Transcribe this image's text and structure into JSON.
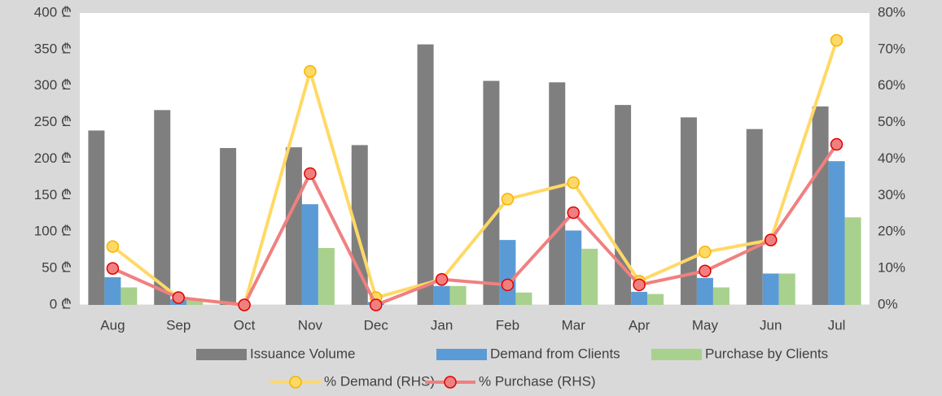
{
  "chart_data": {
    "type": "bar_line",
    "categories": [
      "Aug",
      "Sep",
      "Oct",
      "Nov",
      "Dec",
      "Jan",
      "Feb",
      "Mar",
      "Apr",
      "May",
      "Jun",
      "Jul"
    ],
    "series": [
      {
        "name": "Issuance Volume",
        "type": "bar",
        "color": "#7f7f7f",
        "values": [
          239,
          267,
          215,
          216,
          219,
          357,
          307,
          305,
          274,
          257,
          241,
          272
        ]
      },
      {
        "name": "Demand from Clients",
        "type": "bar",
        "color": "#5b9bd5",
        "values": [
          38,
          8,
          0,
          138,
          4,
          26,
          89,
          102,
          18,
          37,
          43,
          197
        ]
      },
      {
        "name": "Purchase by Clients",
        "type": "bar",
        "color": "#a9d18e",
        "values": [
          24,
          8,
          0,
          78,
          0,
          26,
          17,
          77,
          15,
          24,
          43,
          120
        ]
      },
      {
        "name": "% Demand (RHS)",
        "type": "line",
        "axis": "y2",
        "color": "#ffd966",
        "values": [
          16,
          2,
          0,
          64,
          2,
          7,
          29,
          33.5,
          6.5,
          14.5,
          17.8,
          72.5
        ]
      },
      {
        "name": "% Purchase (RHS)",
        "type": "line",
        "axis": "y2",
        "color": "#f08080",
        "values": [
          10,
          2,
          0,
          36,
          0,
          7,
          5.5,
          25.3,
          5.5,
          9.3,
          17.8,
          44
        ]
      }
    ],
    "ylim": [
      0,
      400
    ],
    "yticks": [
      {
        "value": 0,
        "label": "0 ₾"
      },
      {
        "value": 50,
        "label": "50 ₾"
      },
      {
        "value": 100,
        "label": "100 ₾"
      },
      {
        "value": 150,
        "label": "150 ₾"
      },
      {
        "value": 200,
        "label": "200 ₾"
      },
      {
        "value": 250,
        "label": "250 ₾"
      },
      {
        "value": 300,
        "label": "300 ₾"
      },
      {
        "value": 350,
        "label": "350 ₾"
      },
      {
        "value": 400,
        "label": "400 ₾"
      }
    ],
    "y2lim": [
      0,
      80
    ],
    "y2ticks": [
      {
        "value": 0,
        "label": "0%"
      },
      {
        "value": 10,
        "label": "10%"
      },
      {
        "value": 20,
        "label": "20%"
      },
      {
        "value": 30,
        "label": "30%"
      },
      {
        "value": 40,
        "label": "40%"
      },
      {
        "value": 50,
        "label": "50%"
      },
      {
        "value": 60,
        "label": "60%"
      },
      {
        "value": 70,
        "label": "70%"
      },
      {
        "value": 80,
        "label": "80%"
      }
    ],
    "grid": false
  }
}
